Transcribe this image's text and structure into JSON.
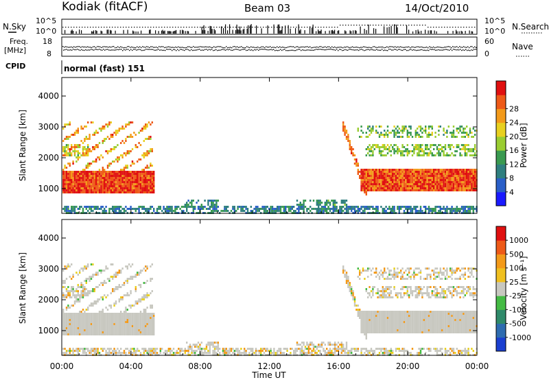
{
  "header": {
    "station": "Kodiak (fitACF)",
    "beam": "Beam 03",
    "date": "14/Oct/2010"
  },
  "strip_labels": {
    "nsky": "N.Sky",
    "nsky_ticks": [
      "10^5",
      "10^0"
    ],
    "nsearch": "N.Search",
    "nsearch_ticks": [
      "10^5",
      "10^0"
    ],
    "freq": "Freq.",
    "freq_unit": "[MHz]",
    "freq_ticks": [
      "18",
      "8"
    ],
    "nave": "Nave",
    "nave_ticks": [
      "60",
      "0"
    ],
    "cpid": "CPID",
    "cpid_value": "normal (fast) 151"
  },
  "chart_data": [
    {
      "type": "heatmap",
      "name": "power",
      "ylabel": "Slant Range [km]",
      "xlabel": "",
      "x_ticks": [
        "00:00",
        "04:00",
        "08:00",
        "12:00",
        "16:00",
        "20:00",
        "00:00"
      ],
      "y_ticks": [
        1000,
        2000,
        3000,
        4000
      ],
      "ylim": [
        200,
        4600
      ],
      "xlim_hours": [
        0,
        24
      ],
      "colorbar": {
        "label": "Power [dB]",
        "ticks": [
          "4",
          "8",
          "12",
          "16",
          "20",
          "24",
          "28"
        ],
        "colors": [
          "#1a1aff",
          "#2a5fc8",
          "#2f7f7f",
          "#3a9a50",
          "#9acd32",
          "#e8d020",
          "#f39a1a",
          "#ee5a18",
          "#e01010"
        ]
      }
    },
    {
      "type": "heatmap",
      "name": "velocity",
      "ylabel": "Slant Range [km]",
      "xlabel": "Time UT",
      "x_ticks": [
        "00:00",
        "04:00",
        "08:00",
        "12:00",
        "16:00",
        "20:00",
        "00:00"
      ],
      "y_ticks": [
        1000,
        2000,
        3000,
        4000
      ],
      "ylim": [
        200,
        4600
      ],
      "xlim_hours": [
        0,
        24
      ],
      "colorbar": {
        "label": "Velocity [m s⁻¹]",
        "ticks": [
          "1000",
          "500",
          "100",
          "25",
          "-25",
          "-100",
          "-500",
          "-1000"
        ],
        "colors": [
          "#1a3fd0",
          "#2e6cb0",
          "#2f8a6a",
          "#44bb44",
          "#c8c8c0",
          "#f0c020",
          "#f39a1a",
          "#ee5a18",
          "#e01010"
        ]
      }
    }
  ]
}
